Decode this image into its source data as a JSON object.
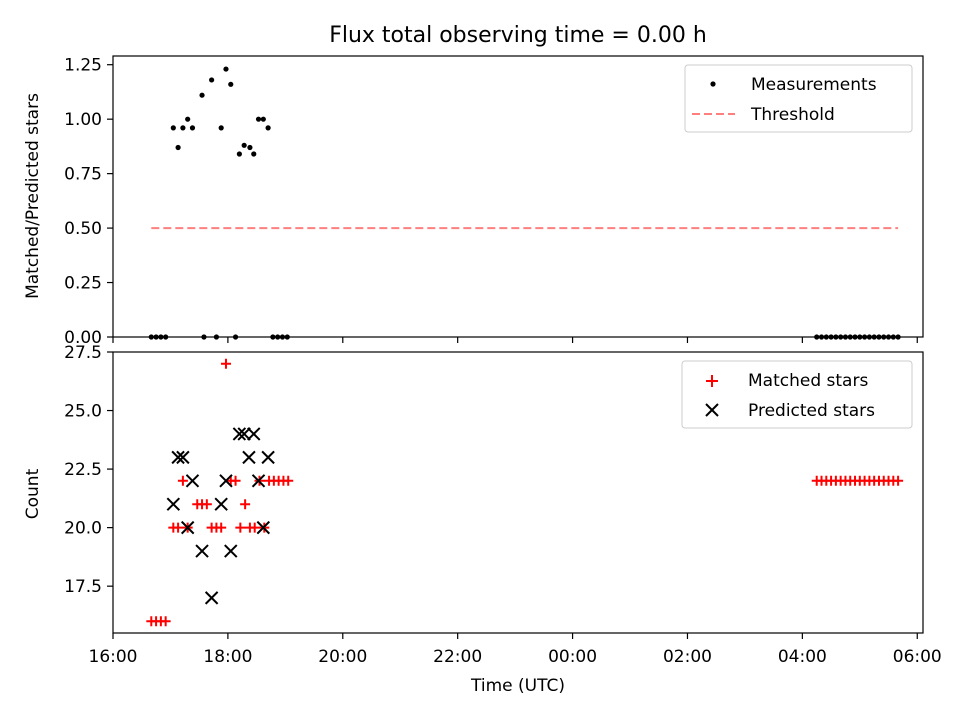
{
  "chart_data": [
    {
      "type": "scatter",
      "title": "Flux total observing time = 0.00 h",
      "ylabel": "Matched/Predicted stars",
      "ylim": [
        0,
        1.29
      ],
      "yticks": [
        "0.00",
        "0.25",
        "0.50",
        "0.75",
        "1.00",
        "1.25"
      ],
      "ytick_values": [
        0,
        0.25,
        0.5,
        0.75,
        1.0,
        1.25
      ],
      "grid": false,
      "legend_position": "top-right",
      "series": [
        {
          "name": "Measurements",
          "kind": "scatter",
          "marker": "dot",
          "color": "#000000",
          "points": [
            [
              "16:40",
              0.0
            ],
            [
              "16:45",
              0.0
            ],
            [
              "16:50",
              0.0
            ],
            [
              "16:55",
              0.0
            ],
            [
              "17:03",
              0.96
            ],
            [
              "17:08",
              0.87
            ],
            [
              "17:13",
              0.96
            ],
            [
              "17:18",
              1.0
            ],
            [
              "17:23",
              0.96
            ],
            [
              "17:33",
              1.11
            ],
            [
              "17:35",
              0.0
            ],
            [
              "17:43",
              1.18
            ],
            [
              "17:48",
              0.0
            ],
            [
              "17:53",
              0.96
            ],
            [
              "17:58",
              1.23
            ],
            [
              "18:03",
              1.16
            ],
            [
              "18:08",
              0.0
            ],
            [
              "18:12",
              0.84
            ],
            [
              "18:17",
              0.88
            ],
            [
              "18:23",
              0.87
            ],
            [
              "18:27",
              0.84
            ],
            [
              "18:32",
              1.0
            ],
            [
              "18:37",
              1.0
            ],
            [
              "18:42",
              0.96
            ],
            [
              "18:47",
              0.0
            ],
            [
              "18:52",
              0.0
            ],
            [
              "18:57",
              0.0
            ],
            [
              "19:02",
              0.0
            ],
            [
              "04:15",
              0.0
            ],
            [
              "04:20",
              0.0
            ],
            [
              "04:25",
              0.0
            ],
            [
              "04:30",
              0.0
            ],
            [
              "04:35",
              0.0
            ],
            [
              "04:40",
              0.0
            ],
            [
              "04:45",
              0.0
            ],
            [
              "04:50",
              0.0
            ],
            [
              "04:55",
              0.0
            ],
            [
              "05:00",
              0.0
            ],
            [
              "05:05",
              0.0
            ],
            [
              "05:10",
              0.0
            ],
            [
              "05:15",
              0.0
            ],
            [
              "05:20",
              0.0
            ],
            [
              "05:25",
              0.0
            ],
            [
              "05:30",
              0.0
            ],
            [
              "05:35",
              0.0
            ],
            [
              "05:40",
              0.0
            ]
          ]
        },
        {
          "name": "Threshold",
          "kind": "line",
          "style": "dashed",
          "color": "#ff7f7f",
          "points": [
            [
              "16:40",
              0.5
            ],
            [
              "05:40",
              0.5
            ]
          ]
        }
      ]
    },
    {
      "type": "scatter",
      "xlabel": "Time (UTC)",
      "ylabel": "Count",
      "xticks": [
        "16:00",
        "18:00",
        "20:00",
        "22:00",
        "00:00",
        "02:00",
        "04:00",
        "06:00"
      ],
      "ylim": [
        15.5,
        27.5
      ],
      "yticks": [
        "17.5",
        "20.0",
        "22.5",
        "25.0",
        "27.5"
      ],
      "ytick_values": [
        17.5,
        20.0,
        22.5,
        25.0,
        27.5
      ],
      "grid": false,
      "legend_position": "top-right",
      "series": [
        {
          "name": "Matched stars",
          "kind": "scatter",
          "marker": "plus",
          "color": "#ff0000",
          "points": [
            [
              "16:40",
              16
            ],
            [
              "16:45",
              16
            ],
            [
              "16:50",
              16
            ],
            [
              "16:55",
              16
            ],
            [
              "17:03",
              20
            ],
            [
              "17:08",
              20
            ],
            [
              "17:13",
              22
            ],
            [
              "17:18",
              20
            ],
            [
              "17:28",
              21
            ],
            [
              "17:33",
              21
            ],
            [
              "17:38",
              21
            ],
            [
              "17:43",
              20
            ],
            [
              "17:48",
              20
            ],
            [
              "17:53",
              20
            ],
            [
              "17:58",
              27
            ],
            [
              "18:03",
              22
            ],
            [
              "18:08",
              22
            ],
            [
              "18:13",
              20
            ],
            [
              "18:18",
              21
            ],
            [
              "18:23",
              20
            ],
            [
              "18:28",
              20
            ],
            [
              "18:33",
              22
            ],
            [
              "18:38",
              20
            ],
            [
              "18:43",
              22
            ],
            [
              "18:48",
              22
            ],
            [
              "18:53",
              22
            ],
            [
              "18:58",
              22
            ],
            [
              "19:03",
              22
            ],
            [
              "04:15",
              22
            ],
            [
              "04:20",
              22
            ],
            [
              "04:25",
              22
            ],
            [
              "04:30",
              22
            ],
            [
              "04:35",
              22
            ],
            [
              "04:40",
              22
            ],
            [
              "04:45",
              22
            ],
            [
              "04:50",
              22
            ],
            [
              "04:55",
              22
            ],
            [
              "05:00",
              22
            ],
            [
              "05:05",
              22
            ],
            [
              "05:10",
              22
            ],
            [
              "05:15",
              22
            ],
            [
              "05:20",
              22
            ],
            [
              "05:25",
              22
            ],
            [
              "05:30",
              22
            ],
            [
              "05:35",
              22
            ],
            [
              "05:40",
              22
            ]
          ]
        },
        {
          "name": "Predicted stars",
          "kind": "scatter",
          "marker": "x",
          "color": "#000000",
          "points": [
            [
              "17:03",
              21
            ],
            [
              "17:08",
              23
            ],
            [
              "17:13",
              23
            ],
            [
              "17:18",
              20
            ],
            [
              "17:23",
              22
            ],
            [
              "17:33",
              19
            ],
            [
              "17:43",
              17
            ],
            [
              "17:53",
              21
            ],
            [
              "17:58",
              22
            ],
            [
              "18:03",
              19
            ],
            [
              "18:12",
              24
            ],
            [
              "18:17",
              24
            ],
            [
              "18:22",
              23
            ],
            [
              "18:27",
              24
            ],
            [
              "18:32",
              22
            ],
            [
              "18:37",
              20
            ],
            [
              "18:42",
              23
            ]
          ]
        }
      ]
    }
  ]
}
